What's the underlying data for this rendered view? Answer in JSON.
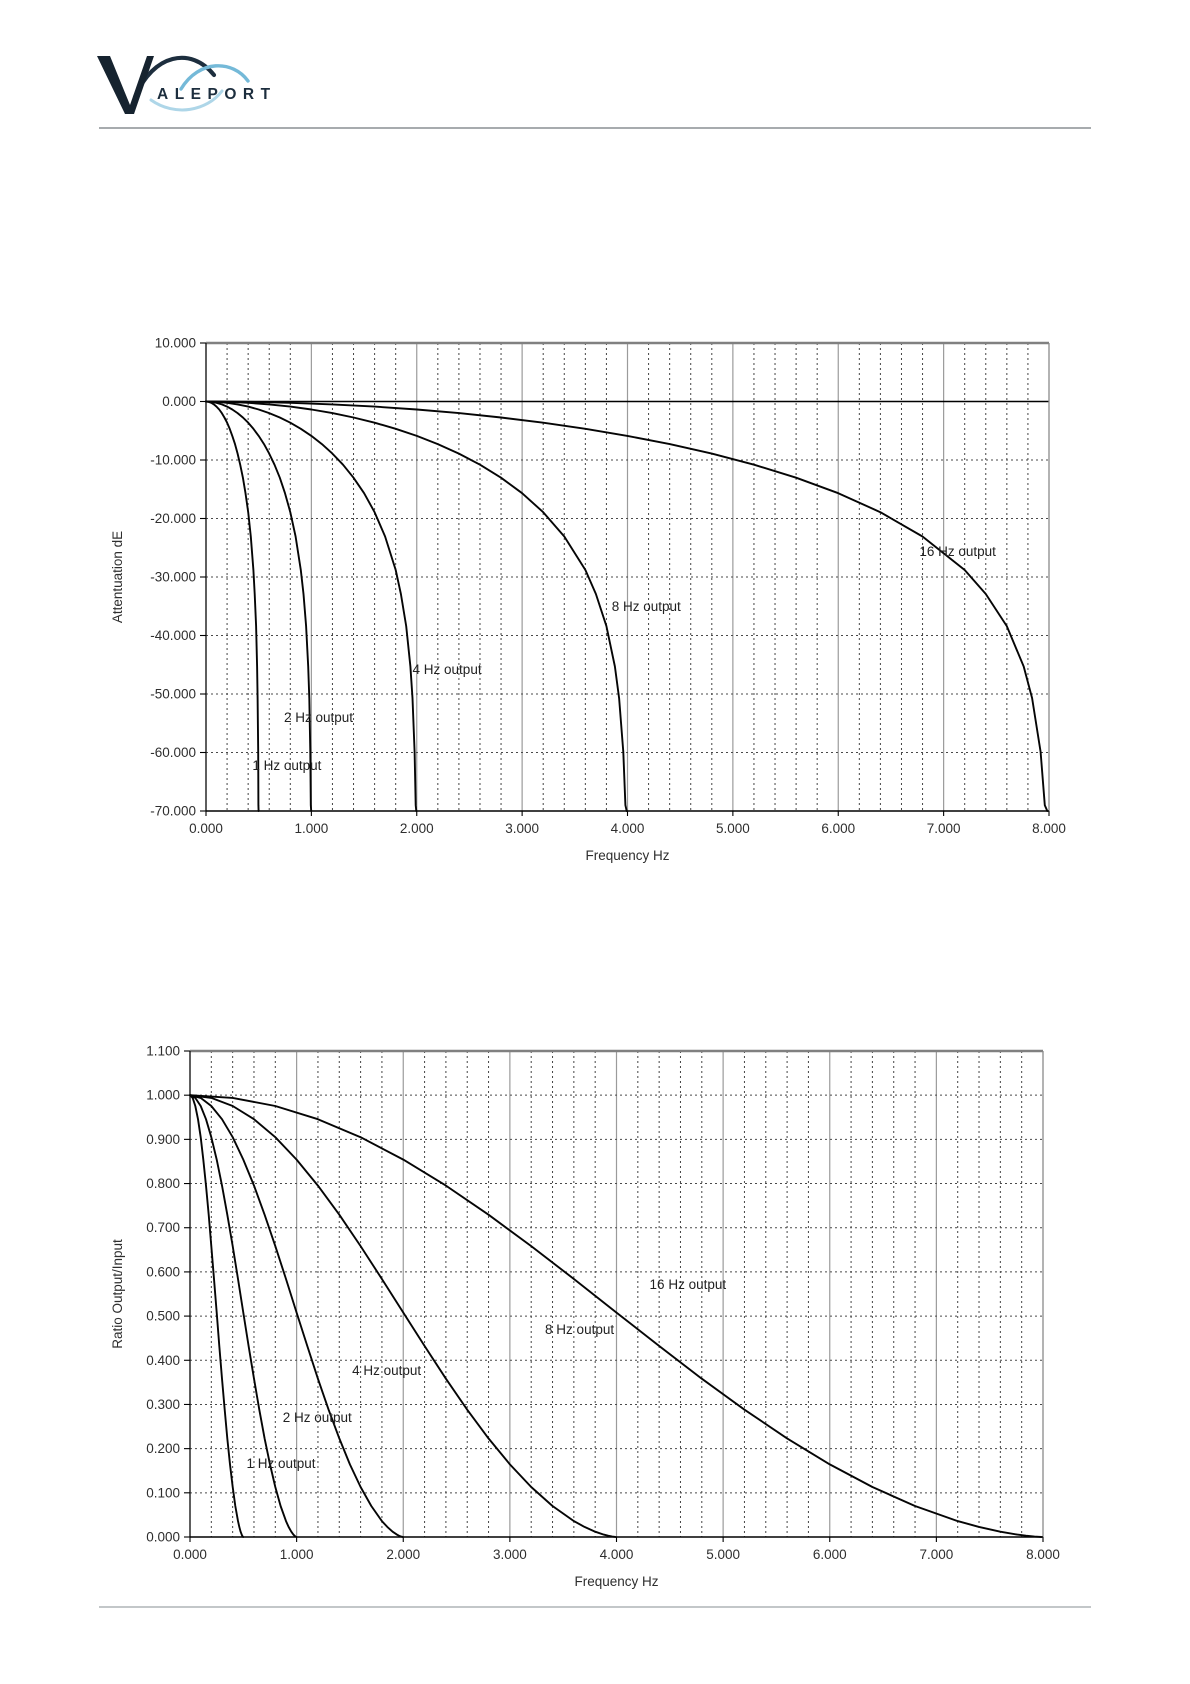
{
  "logo": {
    "v": "V",
    "letters": "ALEPORT",
    "navy": "#1d2e3e",
    "blue": "#74b9d8",
    "blue_light": "#aed6e8"
  },
  "chart_data": [
    {
      "type": "line",
      "title": "",
      "xlabel": "Frequency Hz",
      "ylabel": "Attentuation dE",
      "xlim": [
        0,
        8
      ],
      "ylim": [
        -70,
        10
      ],
      "x_ticks": [
        "0.000",
        "1.000",
        "2.000",
        "3.000",
        "4.000",
        "5.000",
        "6.000",
        "7.000",
        "8.000"
      ],
      "y_ticks": [
        "10.000",
        "0.000",
        "-10.000",
        "-20.000",
        "-30.000",
        "-40.000",
        "-50.000",
        "-60.000",
        "-70.000"
      ],
      "grid": {
        "major_x": "solid gray every 1 Hz",
        "minor_x": "dashed every 0.2 Hz",
        "major_y": "dashed every 10 dB",
        "zero_line": "solid black"
      },
      "zero_line_solid": true,
      "profile_values": [
        0,
        -0.05,
        -0.22,
        -0.49,
        -0.87,
        -1.37,
        -1.99,
        -2.74,
        -3.63,
        -4.67,
        -5.88,
        -7.29,
        -8.91,
        -10.81,
        -13.03,
        -15.68,
        -18.93,
        -23.08,
        -28.8,
        -32.9,
        -38.4,
        -45.3,
        -50.7,
        -59.9,
        -69,
        -70
      ],
      "series": [
        {
          "name": "1 Hz output",
          "f": [
            0,
            0.025,
            0.05,
            0.075,
            0.1,
            0.125,
            0.15,
            0.175,
            0.2,
            0.225,
            0.25,
            0.275,
            0.3,
            0.325,
            0.35,
            0.375,
            0.4,
            0.425,
            0.45,
            0.4625,
            0.475,
            0.485,
            0.49,
            0.495,
            0.4975,
            0.499
          ]
        },
        {
          "name": "2 Hz output",
          "f": [
            0,
            0.05,
            0.1,
            0.15,
            0.2,
            0.25,
            0.3,
            0.35,
            0.4,
            0.45,
            0.5,
            0.55,
            0.6,
            0.65,
            0.7,
            0.75,
            0.8,
            0.85,
            0.9,
            0.925,
            0.95,
            0.97,
            0.98,
            0.99,
            0.995,
            0.998
          ]
        },
        {
          "name": "4 Hz output",
          "f": [
            0,
            0.1,
            0.2,
            0.3,
            0.4,
            0.5,
            0.6,
            0.7,
            0.8,
            0.9,
            1,
            1.1,
            1.2,
            1.3,
            1.4,
            1.5,
            1.6,
            1.7,
            1.8,
            1.85,
            1.9,
            1.94,
            1.96,
            1.98,
            1.99,
            1.996
          ]
        },
        {
          "name": "8 Hz output",
          "f": [
            0,
            0.2,
            0.4,
            0.6,
            0.8,
            1,
            1.2,
            1.4,
            1.6,
            1.8,
            2,
            2.2,
            2.4,
            2.6,
            2.8,
            3,
            3.2,
            3.4,
            3.6,
            3.7,
            3.8,
            3.88,
            3.92,
            3.96,
            3.98,
            3.992
          ]
        },
        {
          "name": "16 Hz output",
          "f": [
            0,
            0.4,
            0.8,
            1.2,
            1.6,
            2,
            2.4,
            2.8,
            3.2,
            3.6,
            4,
            4.4,
            4.8,
            5.2,
            5.6,
            6,
            6.4,
            6.8,
            7.2,
            7.4,
            7.6,
            7.76,
            7.84,
            7.92,
            7.96,
            7.984
          ]
        }
      ],
      "curve_labels": [
        {
          "text": "1 Hz output",
          "fx": 0.44,
          "vy": -63.0
        },
        {
          "text": "2 Hz output",
          "fx": 0.74,
          "vy": -54.8
        },
        {
          "text": "4 Hz output",
          "fx": 1.96,
          "vy": -46.6
        },
        {
          "text": "8 Hz output",
          "fx": 3.85,
          "vy": -35.8
        },
        {
          "text": "16 Hz output",
          "fx": 6.77,
          "vy": -26.4
        }
      ]
    },
    {
      "type": "line",
      "title": "",
      "xlabel": "Frequency Hz",
      "ylabel": "Ratio Output/Input",
      "xlim": [
        0,
        8
      ],
      "ylim": [
        0,
        1.1
      ],
      "x_ticks": [
        "0.000",
        "1.000",
        "2.000",
        "3.000",
        "4.000",
        "5.000",
        "6.000",
        "7.000",
        "8.000"
      ],
      "y_ticks": [
        "1.100",
        "1.000",
        "0.900",
        "0.800",
        "0.700",
        "0.600",
        "0.500",
        "0.400",
        "0.300",
        "0.200",
        "0.100",
        "0.000"
      ],
      "grid": {
        "major_x": "solid gray every 1 Hz",
        "minor_x": "dashed every 0.2 Hz",
        "major_y": "dashed every 0.100"
      },
      "zero_line_solid": false,
      "profile_values": [
        1,
        0.9938,
        0.9756,
        0.9456,
        0.9049,
        0.8543,
        0.7953,
        0.7294,
        0.6584,
        0.584,
        0.5079,
        0.4322,
        0.3584,
        0.2882,
        0.2231,
        0.1644,
        0.1131,
        0.0701,
        0.0361,
        0.0228,
        0.012,
        0.0054,
        0.0029,
        0.001,
        0.0004,
        0.0001
      ],
      "series": [
        {
          "name": "1 Hz output",
          "f": [
            0,
            0.025,
            0.05,
            0.075,
            0.1,
            0.125,
            0.15,
            0.175,
            0.2,
            0.225,
            0.25,
            0.275,
            0.3,
            0.325,
            0.35,
            0.375,
            0.4,
            0.425,
            0.45,
            0.4625,
            0.475,
            0.485,
            0.49,
            0.495,
            0.4975,
            0.499
          ]
        },
        {
          "name": "2 Hz output",
          "f": [
            0,
            0.05,
            0.1,
            0.15,
            0.2,
            0.25,
            0.3,
            0.35,
            0.4,
            0.45,
            0.5,
            0.55,
            0.6,
            0.65,
            0.7,
            0.75,
            0.8,
            0.85,
            0.9,
            0.925,
            0.95,
            0.97,
            0.98,
            0.99,
            0.995,
            0.998
          ]
        },
        {
          "name": "4 Hz output",
          "f": [
            0,
            0.1,
            0.2,
            0.3,
            0.4,
            0.5,
            0.6,
            0.7,
            0.8,
            0.9,
            1,
            1.1,
            1.2,
            1.3,
            1.4,
            1.5,
            1.6,
            1.7,
            1.8,
            1.85,
            1.9,
            1.94,
            1.96,
            1.98,
            1.99,
            1.996
          ]
        },
        {
          "name": "8 Hz output",
          "f": [
            0,
            0.2,
            0.4,
            0.6,
            0.8,
            1,
            1.2,
            1.4,
            1.6,
            1.8,
            2,
            2.2,
            2.4,
            2.6,
            2.8,
            3,
            3.2,
            3.4,
            3.6,
            3.7,
            3.8,
            3.88,
            3.92,
            3.96,
            3.98,
            3.992
          ]
        },
        {
          "name": "16 Hz output",
          "f": [
            0,
            0.4,
            0.8,
            1.2,
            1.6,
            2,
            2.4,
            2.8,
            3.2,
            3.6,
            4,
            4.4,
            4.8,
            5.2,
            5.6,
            6,
            6.4,
            6.8,
            7.2,
            7.4,
            7.6,
            7.76,
            7.84,
            7.92,
            7.96,
            7.984
          ]
        }
      ],
      "curve_labels": [
        {
          "text": "16 Hz output",
          "fx": 4.31,
          "vy": 0.561
        },
        {
          "text": "8 Hz output",
          "fx": 3.33,
          "vy": 0.46
        },
        {
          "text": "4 Hz output",
          "fx": 1.52,
          "vy": 0.367
        },
        {
          "text": "2 Hz output",
          "fx": 0.87,
          "vy": 0.26
        },
        {
          "text": "1 Hz output",
          "fx": 0.53,
          "vy": 0.156
        }
      ]
    }
  ]
}
